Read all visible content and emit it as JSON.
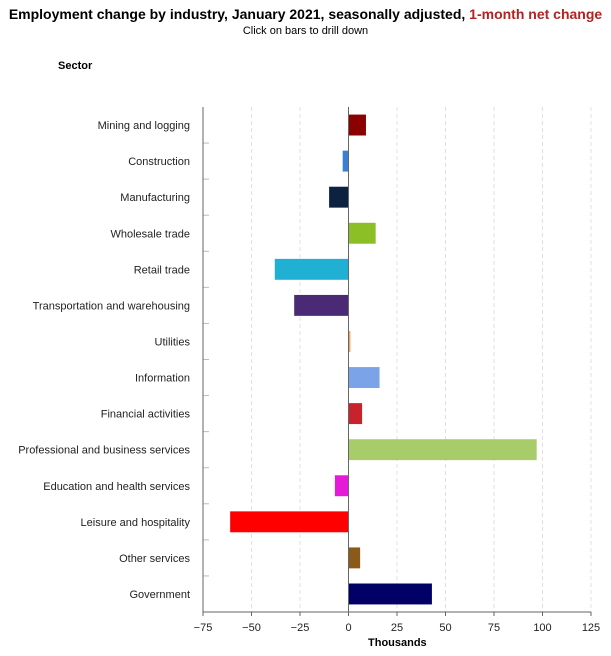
{
  "header": {
    "title_main": "Employment change by industry, January 2021, seasonally adjusted,",
    "title_accent": "1-month net change",
    "subtitle": "Click on bars to drill down",
    "sector_label": "Sector"
  },
  "colors": {
    "accent": "#b22222",
    "grid": "#e0e0e0",
    "axis": "#666666"
  },
  "chart_data": {
    "type": "bar",
    "orientation": "horizontal",
    "title": "Employment change by industry, January 2021, seasonally adjusted, 1-month net change",
    "ylabel": "Sector",
    "xlabel": "Thousands",
    "xlim": [
      -75,
      125
    ],
    "xticks": [
      -75,
      -50,
      -25,
      0,
      25,
      50,
      75,
      100,
      125
    ],
    "xtick_labels": [
      "−75",
      "−50",
      "−25",
      "0",
      "25",
      "50",
      "75",
      "100",
      "125"
    ],
    "grid": "vertical dashed",
    "categories": [
      "Mining and logging",
      "Construction",
      "Manufacturing",
      "Wholesale trade",
      "Retail trade",
      "Transportation and warehousing",
      "Utilities",
      "Information",
      "Financial activities",
      "Professional and business services",
      "Education and health services",
      "Leisure and hospitality",
      "Other services",
      "Government"
    ],
    "values": [
      9,
      -3,
      -10,
      14,
      -38,
      -28,
      1,
      16,
      7,
      97,
      -7,
      -61,
      6,
      43
    ],
    "bar_colors": [
      "#8b0000",
      "#3a7fd5",
      "#0d2240",
      "#8cbf26",
      "#1fb0d3",
      "#4b2a75",
      "#f4a460",
      "#7ba3e8",
      "#c8232c",
      "#a8cc6a",
      "#e619d9",
      "#ff0000",
      "#8b5a1a",
      "#000066"
    ]
  }
}
